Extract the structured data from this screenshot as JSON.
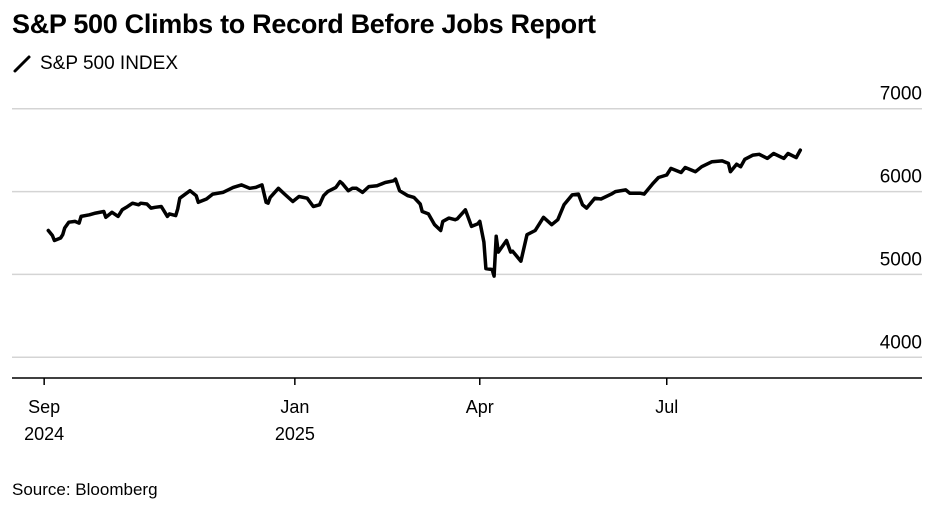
{
  "title": "S&P 500 Climbs to Record Before Jobs Report",
  "legend_label": "S&P 500 INDEX",
  "source": "Source: Bloomberg",
  "colors": {
    "line": "#000000",
    "grid": "#d4d4d4",
    "axis": "#000000",
    "background": "#ffffff"
  },
  "icons": {
    "legend_marker": "diagonal-line-icon"
  },
  "chart_data": {
    "type": "line",
    "title": "S&P 500 Climbs to Record Before Jobs Report",
    "xlabel": "",
    "ylabel": "",
    "grid": true,
    "y_axis_side": "right",
    "ylim": [
      3750,
      7250
    ],
    "yticks": [
      4000,
      5000,
      6000,
      7000
    ],
    "ytick_labels": [
      "4000",
      "5000",
      "6000",
      "7000"
    ],
    "xlim": [
      "2024-08-29",
      "2025-10-05"
    ],
    "xticks": [
      {
        "date": "2024-09-01",
        "label": [
          "Sep",
          "2024"
        ]
      },
      {
        "date": "2025-01-01",
        "label": [
          "Jan",
          "2025"
        ]
      },
      {
        "date": "2025-04-01",
        "label": [
          "Apr"
        ]
      },
      {
        "date": "2025-07-01",
        "label": [
          "Jul"
        ]
      }
    ],
    "series": [
      {
        "name": "S&P 500 INDEX",
        "x": [
          "2024-09-03",
          "2024-09-05",
          "2024-09-06",
          "2024-09-09",
          "2024-09-10",
          "2024-09-11",
          "2024-09-13",
          "2024-09-16",
          "2024-09-18",
          "2024-09-19",
          "2024-09-23",
          "2024-09-26",
          "2024-09-30",
          "2024-10-01",
          "2024-10-02",
          "2024-10-04",
          "2024-10-07",
          "2024-10-09",
          "2024-10-11",
          "2024-10-14",
          "2024-10-17",
          "2024-10-18",
          "2024-10-21",
          "2024-10-23",
          "2024-10-25",
          "2024-10-28",
          "2024-10-31",
          "2024-11-01",
          "2024-11-04",
          "2024-11-05",
          "2024-11-06",
          "2024-11-11",
          "2024-11-14",
          "2024-11-15",
          "2024-11-19",
          "2024-11-22",
          "2024-11-27",
          "2024-12-02",
          "2024-12-06",
          "2024-12-10",
          "2024-12-13",
          "2024-12-16",
          "2024-12-18",
          "2024-12-19",
          "2024-12-20",
          "2024-12-24",
          "2024-12-27",
          "2024-12-31",
          "2025-01-03",
          "2025-01-07",
          "2025-01-10",
          "2025-01-13",
          "2025-01-15",
          "2025-01-17",
          "2025-01-21",
          "2025-01-23",
          "2025-01-24",
          "2025-01-27",
          "2025-01-29",
          "2025-01-31",
          "2025-02-03",
          "2025-02-06",
          "2025-02-10",
          "2025-02-14",
          "2025-02-18",
          "2025-02-19",
          "2025-02-21",
          "2025-02-25",
          "2025-02-28",
          "2025-03-03",
          "2025-03-04",
          "2025-03-07",
          "2025-03-10",
          "2025-03-13",
          "2025-03-14",
          "2025-03-17",
          "2025-03-20",
          "2025-03-21",
          "2025-03-25",
          "2025-03-28",
          "2025-03-31",
          "2025-04-01",
          "2025-04-03",
          "2025-04-04",
          "2025-04-07",
          "2025-04-08",
          "2025-04-09",
          "2025-04-10",
          "2025-04-14",
          "2025-04-16",
          "2025-04-17",
          "2025-04-21",
          "2025-04-24",
          "2025-04-28",
          "2025-05-02",
          "2025-05-06",
          "2025-05-09",
          "2025-05-12",
          "2025-05-16",
          "2025-05-19",
          "2025-05-21",
          "2025-05-23",
          "2025-05-27",
          "2025-05-30",
          "2025-06-04",
          "2025-06-06",
          "2025-06-11",
          "2025-06-13",
          "2025-06-18",
          "2025-06-20",
          "2025-06-24",
          "2025-06-27",
          "2025-07-01",
          "2025-07-03",
          "2025-07-08",
          "2025-07-10",
          "2025-07-15",
          "2025-07-18",
          "2025-07-23",
          "2025-07-28",
          "2025-07-31",
          "2025-08-01",
          "2025-08-04",
          "2025-08-06",
          "2025-08-08",
          "2025-08-12",
          "2025-08-15",
          "2025-08-19",
          "2025-08-22",
          "2025-08-27",
          "2025-08-29",
          "2025-09-02",
          "2025-09-04"
        ],
        "y": [
          5530,
          5470,
          5410,
          5440,
          5480,
          5560,
          5630,
          5640,
          5620,
          5700,
          5720,
          5740,
          5760,
          5690,
          5710,
          5750,
          5700,
          5780,
          5810,
          5860,
          5840,
          5860,
          5850,
          5800,
          5810,
          5820,
          5700,
          5730,
          5710,
          5790,
          5920,
          6010,
          5950,
          5870,
          5910,
          5970,
          5990,
          6050,
          6080,
          6040,
          6050,
          6080,
          5870,
          5860,
          5930,
          6040,
          5970,
          5880,
          5940,
          5920,
          5820,
          5840,
          5950,
          6000,
          6050,
          6120,
          6100,
          6010,
          6040,
          6040,
          5990,
          6060,
          6070,
          6110,
          6130,
          6150,
          6010,
          5950,
          5930,
          5850,
          5760,
          5730,
          5600,
          5530,
          5640,
          5680,
          5660,
          5670,
          5780,
          5580,
          5610,
          5640,
          5390,
          5070,
          5060,
          4980,
          5460,
          5270,
          5410,
          5270,
          5280,
          5160,
          5480,
          5530,
          5690,
          5600,
          5660,
          5840,
          5960,
          5970,
          5840,
          5800,
          5920,
          5910,
          5970,
          6000,
          6020,
          5980,
          5980,
          5970,
          6090,
          6170,
          6200,
          6280,
          6230,
          6290,
          6240,
          6300,
          6360,
          6370,
          6340,
          6240,
          6330,
          6300,
          6390,
          6440,
          6450,
          6400,
          6460,
          6400,
          6460,
          6410,
          6500
        ]
      }
    ]
  }
}
